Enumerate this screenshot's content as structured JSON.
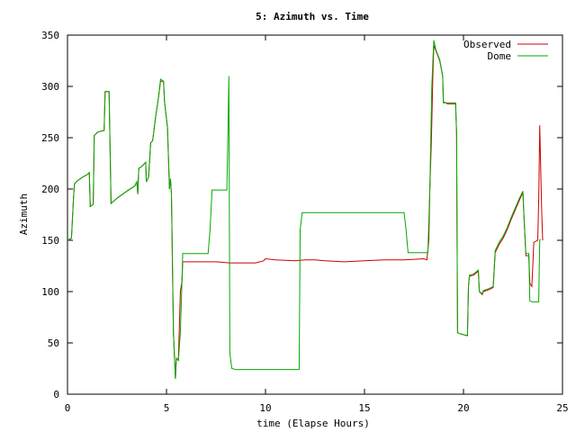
{
  "chart_data": {
    "type": "line",
    "title": "5: Azimuth vs. Time",
    "xlabel": "time (Elapse Hours)",
    "ylabel": "Azimuth",
    "xlim": [
      0,
      25
    ],
    "ylim": [
      0,
      350
    ],
    "xticks": [
      0,
      5,
      10,
      15,
      20,
      25
    ],
    "yticks": [
      0,
      50,
      100,
      150,
      200,
      250,
      300,
      350
    ],
    "grid": false,
    "legend_position": "top-right",
    "series": [
      {
        "name": "Observed",
        "color": "#cc0000",
        "points": [
          [
            0,
            150
          ],
          [
            0.2,
            152
          ],
          [
            0.3,
            190
          ],
          [
            0.35,
            205
          ],
          [
            0.5,
            208
          ],
          [
            0.8,
            212
          ],
          [
            1.0,
            214
          ],
          [
            1.1,
            216
          ],
          [
            1.15,
            183
          ],
          [
            1.3,
            185
          ],
          [
            1.35,
            252
          ],
          [
            1.5,
            255
          ],
          [
            1.6,
            256
          ],
          [
            1.85,
            257
          ],
          [
            1.9,
            295
          ],
          [
            2.1,
            295
          ],
          [
            2.2,
            186
          ],
          [
            2.5,
            191
          ],
          [
            3.0,
            198
          ],
          [
            3.4,
            203
          ],
          [
            3.5,
            207
          ],
          [
            3.55,
            195
          ],
          [
            3.6,
            220
          ],
          [
            3.75,
            222
          ],
          [
            3.95,
            226
          ],
          [
            3.98,
            207
          ],
          [
            4.1,
            212
          ],
          [
            4.2,
            245
          ],
          [
            4.3,
            247
          ],
          [
            4.45,
            270
          ],
          [
            4.6,
            290
          ],
          [
            4.7,
            305
          ],
          [
            4.85,
            305
          ],
          [
            4.9,
            285
          ],
          [
            5.05,
            260
          ],
          [
            5.15,
            200
          ],
          [
            5.2,
            210
          ],
          [
            5.25,
            195
          ],
          [
            5.35,
            60
          ],
          [
            5.45,
            15
          ],
          [
            5.5,
            35
          ],
          [
            5.6,
            33
          ],
          [
            5.7,
            100
          ],
          [
            5.78,
            110
          ],
          [
            5.82,
            129
          ],
          [
            6.5,
            129
          ],
          [
            7.5,
            129
          ],
          [
            8.2,
            128
          ],
          [
            9.5,
            128
          ],
          [
            9.9,
            130
          ],
          [
            10,
            132
          ],
          [
            10.5,
            131
          ],
          [
            11.5,
            130
          ],
          [
            12,
            131
          ],
          [
            12.5,
            131
          ],
          [
            13,
            130
          ],
          [
            14,
            129
          ],
          [
            15,
            130
          ],
          [
            16,
            131
          ],
          [
            17,
            131
          ],
          [
            18,
            132
          ],
          [
            18.15,
            131
          ],
          [
            18.25,
            150
          ],
          [
            18.3,
            200
          ],
          [
            18.38,
            250
          ],
          [
            18.45,
            308
          ],
          [
            18.5,
            340
          ],
          [
            18.6,
            335
          ],
          [
            18.8,
            325
          ],
          [
            18.95,
            310
          ],
          [
            18.98,
            285
          ],
          [
            19.2,
            283
          ],
          [
            19.6,
            283
          ],
          [
            19.65,
            255
          ],
          [
            19.7,
            60
          ],
          [
            19.8,
            59
          ],
          [
            20.0,
            58
          ],
          [
            20.2,
            57
          ],
          [
            20.25,
            105
          ],
          [
            20.3,
            115
          ],
          [
            20.5,
            116
          ],
          [
            20.75,
            120
          ],
          [
            20.8,
            100
          ],
          [
            20.95,
            97
          ],
          [
            21.0,
            100
          ],
          [
            21.3,
            102
          ],
          [
            21.5,
            104
          ],
          [
            21.6,
            138
          ],
          [
            21.8,
            146
          ],
          [
            22.0,
            152
          ],
          [
            22.2,
            160
          ],
          [
            22.4,
            170
          ],
          [
            22.6,
            179
          ],
          [
            22.8,
            188
          ],
          [
            23.0,
            197
          ],
          [
            23.05,
            175
          ],
          [
            23.15,
            135
          ],
          [
            23.3,
            135
          ],
          [
            23.35,
            108
          ],
          [
            23.45,
            105
          ],
          [
            23.5,
            125
          ],
          [
            23.55,
            148
          ],
          [
            23.75,
            150
          ],
          [
            23.8,
            190
          ],
          [
            23.85,
            262
          ],
          [
            23.95,
            178
          ],
          [
            24.0,
            150
          ]
        ]
      },
      {
        "name": "Dome",
        "color": "#00aa00",
        "points": [
          [
            0,
            150
          ],
          [
            0.2,
            152
          ],
          [
            0.3,
            190
          ],
          [
            0.35,
            205
          ],
          [
            0.5,
            208
          ],
          [
            0.8,
            212
          ],
          [
            1.0,
            214
          ],
          [
            1.1,
            216
          ],
          [
            1.15,
            183
          ],
          [
            1.3,
            185
          ],
          [
            1.35,
            252
          ],
          [
            1.5,
            255
          ],
          [
            1.6,
            256
          ],
          [
            1.85,
            257
          ],
          [
            1.9,
            295
          ],
          [
            2.1,
            295
          ],
          [
            2.2,
            186
          ],
          [
            2.5,
            191
          ],
          [
            3.0,
            198
          ],
          [
            3.4,
            203
          ],
          [
            3.5,
            207
          ],
          [
            3.55,
            195
          ],
          [
            3.6,
            220
          ],
          [
            3.75,
            222
          ],
          [
            3.95,
            226
          ],
          [
            3.98,
            207
          ],
          [
            4.1,
            212
          ],
          [
            4.2,
            245
          ],
          [
            4.3,
            247
          ],
          [
            4.45,
            270
          ],
          [
            4.6,
            290
          ],
          [
            4.7,
            307
          ],
          [
            4.85,
            305
          ],
          [
            4.9,
            285
          ],
          [
            5.05,
            260
          ],
          [
            5.15,
            200
          ],
          [
            5.2,
            210
          ],
          [
            5.25,
            195
          ],
          [
            5.35,
            60
          ],
          [
            5.45,
            15
          ],
          [
            5.5,
            35
          ],
          [
            5.6,
            33
          ],
          [
            5.7,
            60
          ],
          [
            5.78,
            110
          ],
          [
            5.82,
            137
          ],
          [
            6.5,
            137
          ],
          [
            7.1,
            137
          ],
          [
            7.2,
            160
          ],
          [
            7.3,
            199
          ],
          [
            7.9,
            199
          ],
          [
            8.05,
            199
          ],
          [
            8.15,
            310
          ],
          [
            8.2,
            40
          ],
          [
            8.3,
            25
          ],
          [
            8.5,
            24
          ],
          [
            10,
            24
          ],
          [
            11.7,
            24
          ],
          [
            11.75,
            160
          ],
          [
            11.85,
            177
          ],
          [
            13,
            177
          ],
          [
            15,
            177
          ],
          [
            17.0,
            177
          ],
          [
            17.1,
            160
          ],
          [
            17.2,
            138
          ],
          [
            17.5,
            138
          ],
          [
            18.2,
            138
          ],
          [
            18.3,
            200
          ],
          [
            18.4,
            300
          ],
          [
            18.5,
            345
          ],
          [
            18.6,
            336
          ],
          [
            18.8,
            326
          ],
          [
            18.95,
            310
          ],
          [
            18.98,
            284
          ],
          [
            19.2,
            284
          ],
          [
            19.6,
            284
          ],
          [
            19.65,
            255
          ],
          [
            19.7,
            60
          ],
          [
            19.8,
            59
          ],
          [
            20.0,
            58
          ],
          [
            20.2,
            57
          ],
          [
            20.25,
            105
          ],
          [
            20.3,
            116
          ],
          [
            20.5,
            117
          ],
          [
            20.75,
            121
          ],
          [
            20.8,
            100
          ],
          [
            20.95,
            98
          ],
          [
            21.0,
            101
          ],
          [
            21.3,
            103
          ],
          [
            21.5,
            105
          ],
          [
            21.6,
            140
          ],
          [
            21.8,
            148
          ],
          [
            22.0,
            154
          ],
          [
            22.2,
            162
          ],
          [
            22.4,
            172
          ],
          [
            22.6,
            181
          ],
          [
            22.8,
            190
          ],
          [
            23.0,
            198
          ],
          [
            23.05,
            175
          ],
          [
            23.15,
            137
          ],
          [
            23.3,
            137
          ],
          [
            23.35,
            91
          ],
          [
            23.45,
            90
          ],
          [
            23.8,
            90
          ],
          [
            23.85,
            150
          ],
          [
            23.9,
            151
          ]
        ]
      }
    ]
  }
}
